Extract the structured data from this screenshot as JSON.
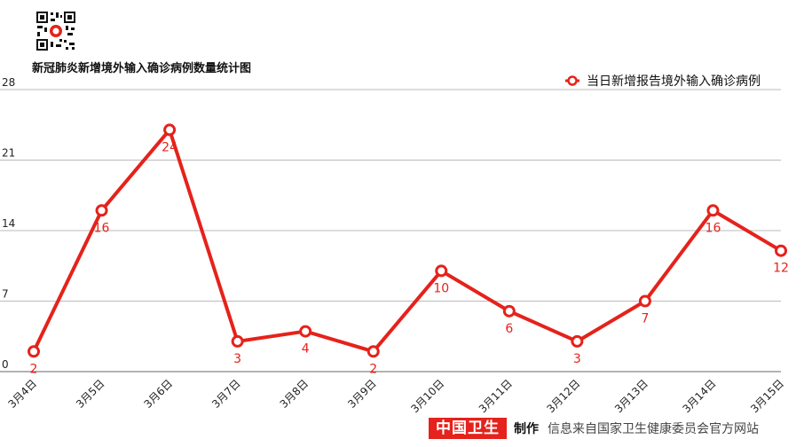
{
  "title": "新冠肺炎新增境外输入确诊病例数量统计图",
  "footer": {
    "brand": "中国卫生",
    "made": "制作",
    "source": "信息来自国家卫生健康委员会官方网站"
  },
  "colors": {
    "series": "#e5221b",
    "grid": "#bbbbbb",
    "brand_bg": "#e5221b"
  },
  "icons": {
    "qr": "qr-code-icon"
  },
  "chart_data": {
    "type": "line",
    "title": "新冠肺炎新增境外输入确诊病例数量统计图",
    "categories": [
      "3月4日",
      "3月5日",
      "3月6日",
      "3月7日",
      "3月8日",
      "3月9日",
      "3月10日",
      "3月11日",
      "3月12日",
      "3月13日",
      "3月14日",
      "3月15日"
    ],
    "series": [
      {
        "name": "当日新增报告境外输入确诊病例",
        "values": [
          2,
          16,
          24,
          3,
          4,
          2,
          10,
          6,
          3,
          7,
          16,
          12
        ]
      }
    ],
    "ylim": [
      0,
      28
    ],
    "yticks": [
      0,
      7,
      14,
      21,
      28
    ],
    "grid": true,
    "legend_position": "top-right",
    "data_labels": true
  }
}
